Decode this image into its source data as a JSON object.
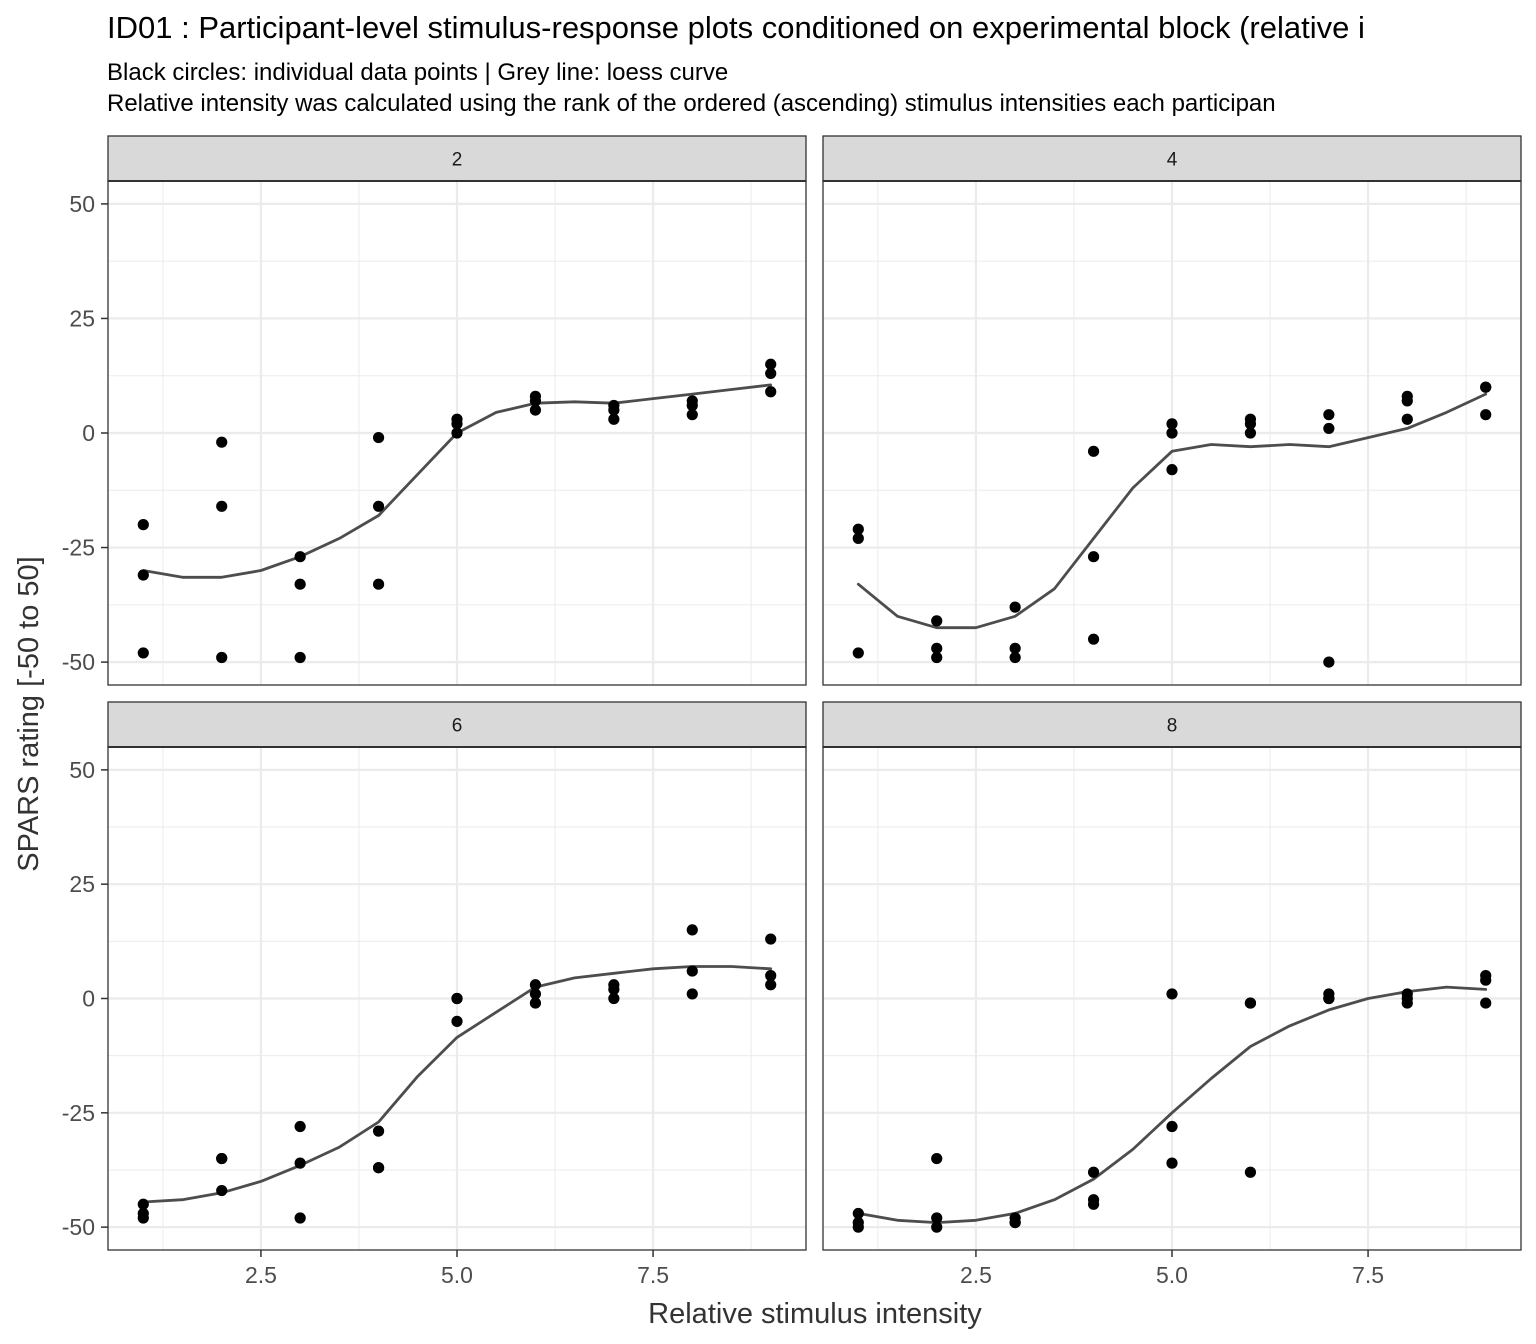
{
  "title": "ID01 : Participant-level stimulus-response plots conditioned on experimental block (relative i",
  "subtitle_lines": [
    "Black circles: individual data points | Grey line: loess curve",
    "Relative intensity was calculated using the rank of the ordered (ascending) stimulus intensities each participan"
  ],
  "chart_data": {
    "type": "scatter",
    "title": "ID01 : Participant-level stimulus-response plots conditioned on experimental block (relative i",
    "xlabel": "Relative stimulus intensity",
    "ylabel": "SPARS rating [-50 to 50]",
    "xlim": [
      0.55,
      9.45
    ],
    "ylim": [
      -55,
      55
    ],
    "x_ticks": [
      2.5,
      5.0,
      7.5
    ],
    "x_tick_labels": [
      "2.5",
      "5.0",
      "7.5"
    ],
    "y_ticks": [
      50,
      25,
      0,
      -25,
      -50
    ],
    "y_tick_labels": [
      "50",
      "25",
      "0",
      "-25",
      "-50"
    ],
    "grid": true,
    "colors": {
      "points": "#000000",
      "loess": "#4d4d4d",
      "strip": "#d9d9d9",
      "grid": "#ebebeb",
      "panel_border": "#333333"
    },
    "facets": [
      {
        "label": "2",
        "points": [
          [
            1,
            -20
          ],
          [
            1,
            -31
          ],
          [
            1,
            -48
          ],
          [
            2,
            -2
          ],
          [
            2,
            -16
          ],
          [
            2,
            -49
          ],
          [
            3,
            -27
          ],
          [
            3,
            -33
          ],
          [
            3,
            -49
          ],
          [
            4,
            -1
          ],
          [
            4,
            -16
          ],
          [
            4,
            -33
          ],
          [
            5,
            3
          ],
          [
            5,
            2
          ],
          [
            5,
            0
          ],
          [
            6,
            8
          ],
          [
            6,
            7
          ],
          [
            6,
            5
          ],
          [
            7,
            6
          ],
          [
            7,
            5
          ],
          [
            7,
            3
          ],
          [
            8,
            7
          ],
          [
            8,
            6
          ],
          [
            8,
            4
          ],
          [
            9,
            15
          ],
          [
            9,
            13
          ],
          [
            9,
            9
          ]
        ],
        "loess": [
          [
            1,
            -30
          ],
          [
            1.5,
            -31.5
          ],
          [
            2,
            -31.5
          ],
          [
            2.5,
            -30
          ],
          [
            3,
            -27
          ],
          [
            3.5,
            -23
          ],
          [
            4,
            -18
          ],
          [
            4.5,
            -9
          ],
          [
            5,
            0
          ],
          [
            5.5,
            4.5
          ],
          [
            6,
            6.5
          ],
          [
            6.5,
            6.8
          ],
          [
            7,
            6.5
          ],
          [
            7.5,
            7.5
          ],
          [
            8,
            8.5
          ],
          [
            8.5,
            9.5
          ],
          [
            9,
            10.5
          ]
        ]
      },
      {
        "label": "4",
        "points": [
          [
            1,
            -21
          ],
          [
            1,
            -23
          ],
          [
            1,
            -48
          ],
          [
            2,
            -41
          ],
          [
            2,
            -47
          ],
          [
            2,
            -49
          ],
          [
            3,
            -38
          ],
          [
            3,
            -47
          ],
          [
            3,
            -49
          ],
          [
            4,
            -4
          ],
          [
            4,
            -27
          ],
          [
            4,
            -45
          ],
          [
            5,
            2
          ],
          [
            5,
            0
          ],
          [
            5,
            -8
          ],
          [
            6,
            3
          ],
          [
            6,
            2
          ],
          [
            6,
            0
          ],
          [
            7,
            4
          ],
          [
            7,
            1
          ],
          [
            7,
            -50
          ],
          [
            8,
            8
          ],
          [
            8,
            7
          ],
          [
            8,
            3
          ],
          [
            9,
            10
          ],
          [
            9,
            10
          ],
          [
            9,
            4
          ]
        ],
        "loess": [
          [
            1,
            -33
          ],
          [
            1.5,
            -40
          ],
          [
            2,
            -42.5
          ],
          [
            2.5,
            -42.5
          ],
          [
            3,
            -40
          ],
          [
            3.5,
            -34
          ],
          [
            4,
            -23
          ],
          [
            4.5,
            -12
          ],
          [
            5,
            -4
          ],
          [
            5.5,
            -2.5
          ],
          [
            6,
            -3
          ],
          [
            6.5,
            -2.5
          ],
          [
            7,
            -3
          ],
          [
            7.5,
            -1
          ],
          [
            8,
            1
          ],
          [
            8.5,
            4.5
          ],
          [
            9,
            8.5
          ]
        ]
      },
      {
        "label": "6",
        "points": [
          [
            1,
            -45
          ],
          [
            1,
            -47
          ],
          [
            1,
            -48
          ],
          [
            2,
            -35
          ],
          [
            2,
            -35
          ],
          [
            2,
            -42
          ],
          [
            3,
            -28
          ],
          [
            3,
            -36
          ],
          [
            3,
            -48
          ],
          [
            4,
            -29
          ],
          [
            4,
            -37
          ],
          [
            4,
            -37
          ],
          [
            5,
            0
          ],
          [
            5,
            0
          ],
          [
            5,
            -5
          ],
          [
            6,
            3
          ],
          [
            6,
            1
          ],
          [
            6,
            -1
          ],
          [
            7,
            3
          ],
          [
            7,
            2
          ],
          [
            7,
            0
          ],
          [
            8,
            15
          ],
          [
            8,
            6
          ],
          [
            8,
            1
          ],
          [
            9,
            13
          ],
          [
            9,
            5
          ],
          [
            9,
            3
          ]
        ],
        "loess": [
          [
            1,
            -44.5
          ],
          [
            1.5,
            -44
          ],
          [
            2,
            -42.5
          ],
          [
            2.5,
            -40
          ],
          [
            3,
            -36.5
          ],
          [
            3.5,
            -32.5
          ],
          [
            4,
            -27
          ],
          [
            4.5,
            -17
          ],
          [
            5,
            -8.5
          ],
          [
            5.5,
            -3
          ],
          [
            6,
            2.5
          ],
          [
            6.5,
            4.5
          ],
          [
            7,
            5.5
          ],
          [
            7.5,
            6.5
          ],
          [
            8,
            7
          ],
          [
            8.5,
            7
          ],
          [
            9,
            6.5
          ]
        ]
      },
      {
        "label": "8",
        "points": [
          [
            1,
            -47
          ],
          [
            1,
            -49
          ],
          [
            1,
            -50
          ],
          [
            2,
            -35
          ],
          [
            2,
            -48
          ],
          [
            2,
            -50
          ],
          [
            3,
            -48
          ],
          [
            3,
            -49
          ],
          [
            3,
            -49
          ],
          [
            4,
            -38
          ],
          [
            4,
            -44
          ],
          [
            4,
            -45
          ],
          [
            5,
            1
          ],
          [
            5,
            -28
          ],
          [
            5,
            -36
          ],
          [
            6,
            -1
          ],
          [
            6,
            -1
          ],
          [
            6,
            -38
          ],
          [
            7,
            1
          ],
          [
            7,
            0
          ],
          [
            7,
            0
          ],
          [
            8,
            1
          ],
          [
            8,
            0
          ],
          [
            8,
            -1
          ],
          [
            9,
            5
          ],
          [
            9,
            4
          ],
          [
            9,
            -1
          ]
        ],
        "loess": [
          [
            1,
            -47
          ],
          [
            1.5,
            -48.5
          ],
          [
            2,
            -49
          ],
          [
            2.5,
            -48.5
          ],
          [
            3,
            -47
          ],
          [
            3.5,
            -44
          ],
          [
            4,
            -39.5
          ],
          [
            4.5,
            -33
          ],
          [
            5,
            -25
          ],
          [
            5.5,
            -17.5
          ],
          [
            6,
            -10.5
          ],
          [
            6.5,
            -6
          ],
          [
            7,
            -2.5
          ],
          [
            7.5,
            0
          ],
          [
            8,
            1.5
          ],
          [
            8.5,
            2.5
          ],
          [
            9,
            2
          ]
        ]
      }
    ]
  }
}
